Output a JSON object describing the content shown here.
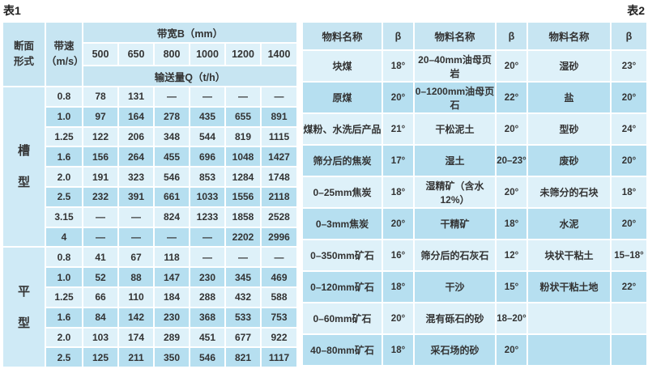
{
  "colors": {
    "header_bg": "#c7e5f2",
    "row_light": "#def1f9",
    "row_dark": "#b6dff0",
    "side_bg": "#cfeaf6",
    "text": "#333333"
  },
  "table1": {
    "title": "表1",
    "corner_header": [
      "断面",
      "形式"
    ],
    "speed_header": [
      "带速",
      "（m/s）"
    ],
    "bandwidth_header": "带宽B（mm）",
    "bandwidths": [
      "500",
      "650",
      "800",
      "1000",
      "1200",
      "1400"
    ],
    "quantity_header": "输送量Q（t/h）",
    "groups": [
      {
        "label": [
          "槽",
          "型"
        ],
        "rows": [
          {
            "speed": "0.8",
            "values": [
              "78",
              "131",
              "—",
              "—",
              "—",
              "—"
            ]
          },
          {
            "speed": "1.0",
            "values": [
              "97",
              "164",
              "278",
              "435",
              "655",
              "891"
            ]
          },
          {
            "speed": "1.25",
            "values": [
              "122",
              "206",
              "348",
              "544",
              "819",
              "1115"
            ]
          },
          {
            "speed": "1.6",
            "values": [
              "156",
              "264",
              "455",
              "696",
              "1048",
              "1427"
            ]
          },
          {
            "speed": "2.0",
            "values": [
              "191",
              "323",
              "546",
              "853",
              "1284",
              "1748"
            ]
          },
          {
            "speed": "2.5",
            "values": [
              "232",
              "391",
              "661",
              "1033",
              "1556",
              "2118"
            ]
          },
          {
            "speed": "3.15",
            "values": [
              "—",
              "—",
              "824",
              "1233",
              "1858",
              "2528"
            ]
          },
          {
            "speed": "4",
            "values": [
              "—",
              "—",
              "—",
              "—",
              "2202",
              "2996"
            ]
          }
        ]
      },
      {
        "label": [
          "平",
          "型"
        ],
        "rows": [
          {
            "speed": "0.8",
            "values": [
              "41",
              "67",
              "118",
              "—",
              "—",
              "—"
            ]
          },
          {
            "speed": "1.0",
            "values": [
              "52",
              "88",
              "147",
              "230",
              "345",
              "469"
            ]
          },
          {
            "speed": "1.25",
            "values": [
              "66",
              "110",
              "184",
              "288",
              "432",
              "588"
            ]
          },
          {
            "speed": "1.6",
            "values": [
              "84",
              "142",
              "230",
              "368",
              "533",
              "753"
            ]
          },
          {
            "speed": "2.0",
            "values": [
              "103",
              "174",
              "289",
              "451",
              "677",
              "922"
            ]
          },
          {
            "speed": "2.5",
            "values": [
              "125",
              "211",
              "350",
              "546",
              "821",
              "1117"
            ]
          }
        ]
      }
    ]
  },
  "table2": {
    "title": "表2",
    "headers": [
      "物料名称",
      "β",
      "物料名称",
      "β",
      "物料名称",
      "β"
    ],
    "rows": [
      [
        "块煤",
        "18°",
        "20–40mm油母页岩",
        "20°",
        "湿砂",
        "23°"
      ],
      [
        "原煤",
        "20°",
        "0–1200mm油母页石",
        "22°",
        "盐",
        "20°"
      ],
      [
        "煤粉、水洗后产品",
        "21°",
        "干松泥土",
        "20°",
        "型砂",
        "24°"
      ],
      [
        "筛分后的焦炭",
        "17°",
        "湿土",
        "20–23°",
        "废砂",
        "20°"
      ],
      [
        "0–25mm焦炭",
        "18°",
        "湿精矿（含水12%）",
        "20°",
        "未筛分的石块",
        "18°"
      ],
      [
        "0–3mm焦炭",
        "20°",
        "干精矿",
        "18°",
        "水泥",
        "20°"
      ],
      [
        "0–350mm矿石",
        "16°",
        "筛分后的石灰石",
        "12°",
        "块状干粘土",
        "15–18°"
      ],
      [
        "0–120mm矿石",
        "18°",
        "干沙",
        "15°",
        "粉状干粘土地",
        "22°"
      ],
      [
        "0–60mm矿石",
        "20°",
        "混有砾石的砂",
        "18–20°",
        "",
        ""
      ],
      [
        "40–80mm矿石",
        "18°",
        "采石场的砂",
        "20°",
        "",
        ""
      ]
    ]
  }
}
